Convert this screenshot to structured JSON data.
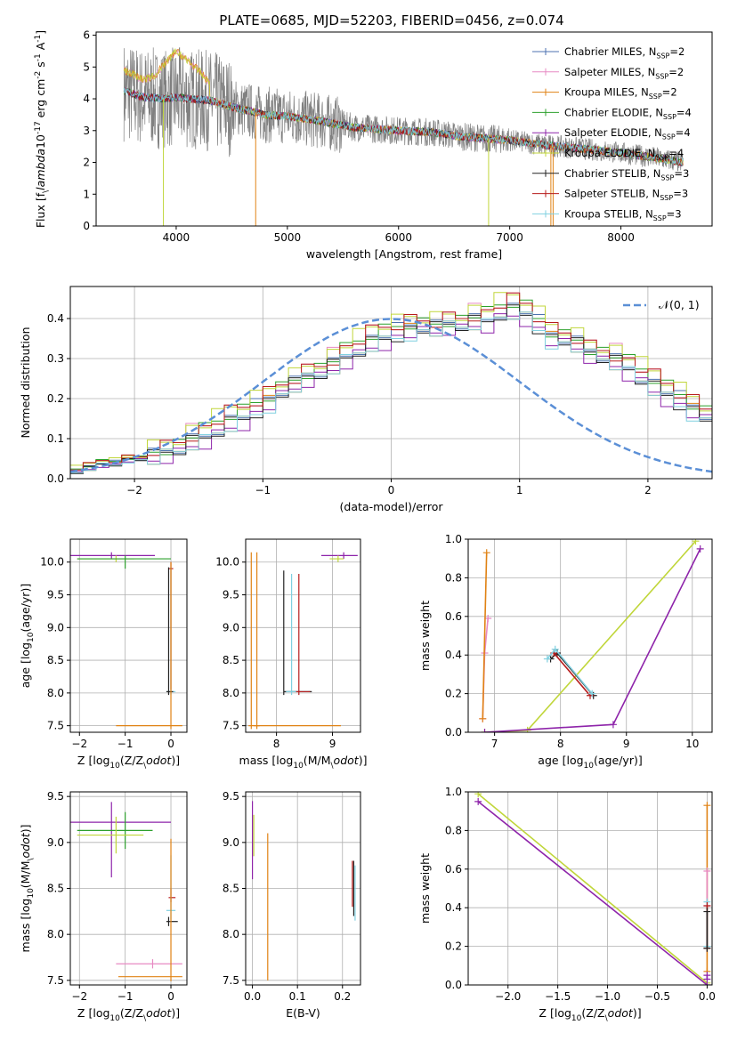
{
  "figure_title": "PLATE=0685, MJD=52203, FIBERID=0456, z=0.074",
  "legend_fits": [
    {
      "name": "Chabrier MILES",
      "nssp": "2",
      "color": "#4c72b0"
    },
    {
      "name": "Salpeter MILES",
      "nssp": "2",
      "color": "#e78ac3"
    },
    {
      "name": "Kroupa MILES",
      "nssp": "2",
      "color": "#e08214"
    },
    {
      "name": "Chabrier ELODIE",
      "nssp": "4",
      "color": "#2ca02c"
    },
    {
      "name": "Salpeter ELODIE",
      "nssp": "4",
      "color": "#8e24aa"
    },
    {
      "name": "Kroupa ELODIE",
      "nssp": "4",
      "color": "#c0d63a"
    },
    {
      "name": "Chabrier STELIB",
      "nssp": "3",
      "color": "#222222"
    },
    {
      "name": "Salpeter STELIB",
      "nssp": "3",
      "color": "#b71c1c"
    },
    {
      "name": "Kroupa STELIB",
      "nssp": "3",
      "color": "#80d0e0"
    }
  ],
  "colors": {
    "data_spectrum": "#808080",
    "gaussian": "#5b8fd6",
    "grid": "#b0b0b0"
  },
  "chart_data": [
    {
      "id": "spectrum",
      "type": "line",
      "xlabel": "wavelength [Angstrom, rest frame]",
      "ylabel": "Flux [f$_\\lambda$10$^{-17}$ erg cm$^{-2}$ s$^{-1}$ A$^{-1}$]",
      "xlim": [
        3280,
        8820
      ],
      "ylim": [
        0,
        6.1
      ],
      "xticks": [
        4000,
        5000,
        6000,
        7000,
        8000
      ],
      "yticks": [
        0,
        1,
        2,
        3,
        4,
        5,
        6
      ],
      "grid": false,
      "legend": "right",
      "continuum": {
        "x": [
          3530,
          3700,
          3900,
          4000,
          4100,
          4300,
          4500,
          4800,
          5000,
          5300,
          5600,
          6000,
          6300,
          6600,
          7000,
          7300,
          7600,
          8000,
          8300,
          8550
        ],
        "y": [
          4.25,
          4.05,
          4.0,
          4.05,
          4.0,
          3.95,
          3.75,
          3.5,
          3.45,
          3.3,
          3.1,
          3.0,
          2.95,
          2.8,
          2.7,
          2.55,
          2.45,
          2.3,
          2.15,
          2.0
        ]
      },
      "blue_bump": {
        "x": [
          3530,
          3600,
          3700,
          3800,
          3900,
          4000,
          4100,
          4200,
          4300
        ],
        "y": [
          4.9,
          4.8,
          4.6,
          4.7,
          5.1,
          5.5,
          5.2,
          4.9,
          4.5
        ]
      }
    },
    {
      "id": "residuals",
      "type": "bar",
      "xlabel": "(data-model)/error",
      "ylabel": "Normed distribution",
      "xlim": [
        -2.5,
        2.5
      ],
      "ylim": [
        0,
        0.48
      ],
      "xticks": [
        -2,
        -1,
        0,
        1,
        2
      ],
      "yticks": [
        0.0,
        0.1,
        0.2,
        0.3,
        0.4
      ],
      "grid": true,
      "legend": "top-right",
      "gaussian_label": "$\\mathcal{N}(0, 1)$",
      "bin_edges_start": -2.5,
      "bin_width": 0.1,
      "histogram": [
        0.02,
        0.03,
        0.04,
        0.04,
        0.05,
        0.05,
        0.06,
        0.07,
        0.08,
        0.1,
        0.11,
        0.13,
        0.15,
        0.16,
        0.18,
        0.2,
        0.22,
        0.24,
        0.26,
        0.27,
        0.29,
        0.31,
        0.33,
        0.35,
        0.36,
        0.37,
        0.38,
        0.38,
        0.38,
        0.39,
        0.39,
        0.4,
        0.4,
        0.42,
        0.43,
        0.42,
        0.39,
        0.36,
        0.35,
        0.34,
        0.32,
        0.31,
        0.3,
        0.28,
        0.26,
        0.24,
        0.22,
        0.2,
        0.18,
        0.16,
        0.14,
        0.12,
        0.11,
        0.09,
        0.08,
        0.07,
        0.06,
        0.05,
        0.05,
        0.04,
        0.04,
        0.03,
        0.03,
        0.03,
        0.02,
        0.02,
        0.02,
        0.02,
        0.02,
        0.02
      ]
    },
    {
      "id": "age_vs_Z",
      "type": "scatter",
      "xlabel": "Z [log$_{10}$(Z/Z$_\\odot$)]",
      "ylabel": "age  [log$_{10}$(age/yr)]",
      "xlim": [
        -2.2,
        0.35
      ],
      "ylim": [
        7.4,
        10.35
      ],
      "xticks": [
        -2,
        -1,
        0
      ],
      "yticks": [
        7.5,
        8.0,
        8.5,
        9.0,
        9.5,
        10.0
      ],
      "grid": true,
      "errorbars": [
        {
          "color": "#8e24aa",
          "x": -1.3,
          "xerr": [
            0.95,
            0.95
          ],
          "y": 10.1,
          "yerr": [
            0.05,
            0.05
          ]
        },
        {
          "color": "#c0d63a",
          "x": -1.2,
          "xerr": [
            0.85,
            0.4
          ],
          "y": 10.05,
          "yerr": [
            0.05,
            0.05
          ]
        },
        {
          "color": "#2ca02c",
          "x": -1.0,
          "xerr": [
            1.05,
            1.0
          ],
          "y": 10.05,
          "yerr": [
            0.15,
            0.05
          ]
        },
        {
          "color": "#b71c1c",
          "x": 0.0,
          "xerr": [
            0.05,
            0.05
          ],
          "y": 9.9,
          "yerr": [
            1.85,
            0.1
          ]
        },
        {
          "color": "#80d0e0",
          "x": 0.0,
          "xerr": [
            0.1,
            0.1
          ],
          "y": 8.02,
          "yerr": [
            0.05,
            1.9
          ]
        },
        {
          "color": "#222222",
          "x": -0.05,
          "xerr": [
            0.05,
            0.1
          ],
          "y": 8.02,
          "yerr": [
            0.05,
            1.9
          ]
        },
        {
          "color": "#e08214",
          "x": 0.0,
          "xerr": [
            1.2,
            0.25
          ],
          "y": 7.5,
          "yerr": [
            0.05,
            2.5
          ]
        }
      ]
    },
    {
      "id": "age_vs_mass",
      "type": "scatter",
      "xlabel": "mass [log$_{10}$(M/M$_\\odot$)]",
      "ylabel": "",
      "xlim": [
        7.45,
        9.5
      ],
      "ylim": [
        7.4,
        10.35
      ],
      "xticks": [
        8,
        9
      ],
      "yticks": [
        7.5,
        8.0,
        8.5,
        9.0,
        9.5,
        10.0
      ],
      "grid": true,
      "errorbars": [
        {
          "color": "#8e24aa",
          "x": 9.2,
          "xerr": [
            0.4,
            0.25
          ],
          "y": 10.1,
          "yerr": [
            0.05,
            0.05
          ]
        },
        {
          "color": "#c0d63a",
          "x": 9.1,
          "xerr": [
            0.15,
            0.1
          ],
          "y": 10.05,
          "yerr": [
            0.05,
            0.05
          ]
        },
        {
          "color": "#222222",
          "x": 8.13,
          "xerr": [
            0.0,
            0.5
          ],
          "y": 8.02,
          "yerr": [
            0.05,
            1.85
          ]
        },
        {
          "color": "#80d0e0",
          "x": 8.27,
          "xerr": [
            0.1,
            0.3
          ],
          "y": 8.02,
          "yerr": [
            0.05,
            1.8
          ]
        },
        {
          "color": "#b71c1c",
          "x": 8.4,
          "xerr": [
            0.05,
            0.2
          ],
          "y": 8.02,
          "yerr": [
            0.05,
            1.8
          ]
        },
        {
          "color": "#e08214",
          "x": 7.55,
          "xerr": [
            0.05,
            1.6
          ],
          "y": 7.5,
          "yerr": [
            0.05,
            2.65
          ]
        },
        {
          "color": "#e08214",
          "x": 7.65,
          "xerr": [
            0.05,
            0.05
          ],
          "y": 7.5,
          "yerr": [
            0.05,
            2.65
          ]
        }
      ]
    },
    {
      "id": "massweight_vs_age",
      "type": "line",
      "xlabel": "age  [log$_{10}$(age/yr)]",
      "ylabel": "mass weight",
      "xlim": [
        6.6,
        10.3
      ],
      "ylim": [
        0,
        1
      ],
      "xticks": [
        7,
        8,
        9,
        10
      ],
      "yticks": [
        0.0,
        0.2,
        0.4,
        0.6,
        0.8,
        1.0
      ],
      "grid": true,
      "series": [
        {
          "color": "#e78ac3",
          "x": [
            6.82,
            6.85,
            6.9
          ],
          "y": [
            0.07,
            0.41,
            0.59
          ]
        },
        {
          "color": "#e08214",
          "x": [
            6.82,
            6.88
          ],
          "y": [
            0.07,
            0.93
          ]
        },
        {
          "color": "#c0d63a",
          "x": [
            6.85,
            7.5,
            10.05
          ],
          "y": [
            0.0,
            0.01,
            0.99
          ]
        },
        {
          "color": "#8e24aa",
          "x": [
            6.85,
            8.8,
            10.12
          ],
          "y": [
            0.0,
            0.04,
            0.95
          ]
        },
        {
          "color": "#222222",
          "x": [
            7.85,
            7.95,
            8.5
          ],
          "y": [
            0.38,
            0.41,
            0.19
          ]
        },
        {
          "color": "#b71c1c",
          "x": [
            7.9,
            8.45
          ],
          "y": [
            0.41,
            0.19
          ]
        },
        {
          "color": "#80d0e0",
          "x": [
            7.8,
            7.92,
            8.48
          ],
          "y": [
            0.38,
            0.43,
            0.2
          ]
        }
      ]
    },
    {
      "id": "mass_vs_Z",
      "type": "scatter",
      "xlabel": "Z [log$_{10}$(Z/Z$_\\odot$)]",
      "ylabel": "mass [log$_{10}$(M/M$_\\odot$)]",
      "xlim": [
        -2.2,
        0.35
      ],
      "ylim": [
        7.45,
        9.55
      ],
      "xticks": [
        -2,
        -1,
        0
      ],
      "yticks": [
        7.5,
        8.0,
        8.5,
        9.0,
        9.5
      ],
      "grid": true,
      "errorbars": [
        {
          "color": "#8e24aa",
          "x": -1.3,
          "xerr": [
            0.9,
            1.3
          ],
          "y": 9.22,
          "yerr": [
            0.6,
            0.22
          ]
        },
        {
          "color": "#2ca02c",
          "x": -1.0,
          "xerr": [
            1.05,
            0.6
          ],
          "y": 9.13,
          "yerr": [
            0.2,
            0.2
          ]
        },
        {
          "color": "#c0d63a",
          "x": -1.2,
          "xerr": [
            0.85,
            0.6
          ],
          "y": 9.08,
          "yerr": [
            0.2,
            0.2
          ]
        },
        {
          "color": "#b71c1c",
          "x": 0.0,
          "xerr": [
            0.05,
            0.1
          ],
          "y": 8.4,
          "yerr": [
            0.05,
            0.1
          ]
        },
        {
          "color": "#80d0e0",
          "x": 0.0,
          "xerr": [
            0.1,
            0.1
          ],
          "y": 8.26,
          "yerr": [
            0.1,
            0.6
          ]
        },
        {
          "color": "#222222",
          "x": -0.05,
          "xerr": [
            0.05,
            0.2
          ],
          "y": 8.14,
          "yerr": [
            0.05,
            0.05
          ]
        },
        {
          "color": "#e78ac3",
          "x": -0.4,
          "xerr": [
            0.8,
            0.65
          ],
          "y": 7.68,
          "yerr": [
            0.05,
            0.05
          ]
        },
        {
          "color": "#e08214",
          "x": 0.0,
          "xerr": [
            1.15,
            0.25
          ],
          "y": 7.54,
          "yerr": [
            0.05,
            1.5
          ]
        }
      ]
    },
    {
      "id": "mass_vs_ebv",
      "type": "scatter",
      "xlabel": "E(B-V)",
      "ylabel": "",
      "xlim": [
        -0.015,
        0.24
      ],
      "ylim": [
        7.45,
        9.55
      ],
      "xticks": [
        0.0,
        0.1,
        0.2
      ],
      "yticks": [
        7.5,
        8.0,
        8.5,
        9.0,
        9.5
      ],
      "grid": true,
      "errorbars": [
        {
          "color": "#8e24aa",
          "x": 0.0,
          "xerr": [
            0.0,
            0.0
          ],
          "y": 9.1,
          "yerr": [
            0.5,
            0.35
          ]
        },
        {
          "color": "#c0d63a",
          "x": 0.003,
          "xerr": [
            0.0,
            0.0
          ],
          "y": 9.0,
          "yerr": [
            0.15,
            0.3
          ]
        },
        {
          "color": "#e08214",
          "x": 0.034,
          "xerr": [
            0.0,
            0.0
          ],
          "y": 8.3,
          "yerr": [
            0.8,
            0.8
          ]
        },
        {
          "color": "#b71c1c",
          "x": 0.222,
          "xerr": [
            0.0,
            0.0
          ],
          "y": 8.55,
          "yerr": [
            0.25,
            0.25
          ]
        },
        {
          "color": "#222222",
          "x": 0.225,
          "xerr": [
            0.0,
            0.0
          ],
          "y": 8.5,
          "yerr": [
            0.3,
            0.3
          ]
        },
        {
          "color": "#80d0e0",
          "x": 0.228,
          "xerr": [
            0.0,
            0.0
          ],
          "y": 8.45,
          "yerr": [
            0.3,
            0.3
          ]
        }
      ]
    },
    {
      "id": "massweight_vs_Z",
      "type": "line",
      "xlabel": "Z [log$_{10}$(Z/Z$_\\odot$)]",
      "ylabel": "mass weight",
      "xlim": [
        -2.4,
        0.05
      ],
      "ylim": [
        0,
        1
      ],
      "xticks": [
        -2.0,
        -1.5,
        -1.0,
        -0.5,
        0.0
      ],
      "yticks": [
        0.0,
        0.2,
        0.4,
        0.6,
        0.8,
        1.0
      ],
      "grid": true,
      "series": [
        {
          "color": "#c0d63a",
          "x": [
            -2.3,
            0.0
          ],
          "y": [
            0.99,
            0.01
          ]
        },
        {
          "color": "#8e24aa",
          "x": [
            -2.3,
            0.0
          ],
          "y": [
            0.95,
            0.0
          ]
        },
        {
          "color": "#e08214",
          "x": [
            0.0,
            0.0
          ],
          "y": [
            0.07,
            0.93
          ]
        },
        {
          "color": "#e78ac3",
          "x": [
            0.0,
            0.0
          ],
          "y": [
            0.41,
            0.59
          ]
        },
        {
          "color": "#80d0e0",
          "x": [
            0.0,
            0.0
          ],
          "y": [
            0.2,
            0.43
          ]
        },
        {
          "color": "#b71c1c",
          "x": [
            0.0,
            0.0
          ],
          "y": [
            0.19,
            0.41
          ]
        },
        {
          "color": "#222222",
          "x": [
            0.0,
            0.0
          ],
          "y": [
            0.19,
            0.38
          ]
        },
        {
          "color": "#8e24aa",
          "x": [
            0.0,
            0.0
          ],
          "y": [
            0.03,
            0.05
          ]
        }
      ]
    }
  ]
}
